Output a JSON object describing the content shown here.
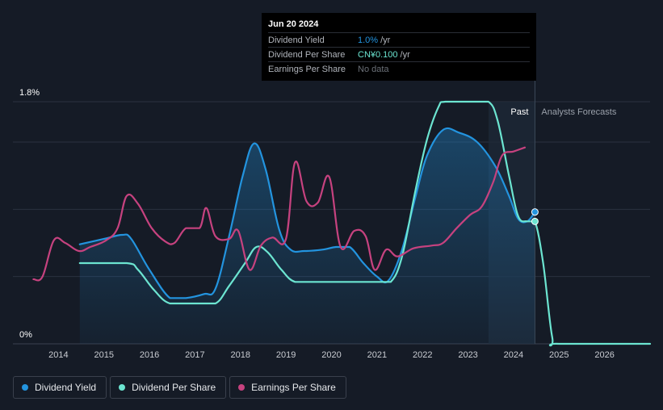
{
  "colors": {
    "background": "#151b26",
    "dividend_yield": "#2394df",
    "dividend_per_share": "#6ce5d1",
    "earnings_per_share": "#c6427f",
    "grid": "#2a3140"
  },
  "tooltip": {
    "date": "Jun 20 2024",
    "rows": [
      {
        "label": "Dividend Yield",
        "value": "1.0%",
        "unit": "/yr",
        "color": "#2394df"
      },
      {
        "label": "Dividend Per Share",
        "value": "CN¥0.100",
        "unit": "/yr",
        "color": "#6ce5d1"
      },
      {
        "label": "Earnings Per Share",
        "value": "No data",
        "unit": ""
      }
    ]
  },
  "regions": {
    "past_label": "Past",
    "forecast_label": "Analysts Forecasts"
  },
  "legend": [
    {
      "label": "Dividend Yield",
      "color": "#2394df"
    },
    {
      "label": "Dividend Per Share",
      "color": "#6ce5d1"
    },
    {
      "label": "Earnings Per Share",
      "color": "#c6427f"
    }
  ],
  "chart_data": {
    "type": "line",
    "title": "",
    "xlabel": "",
    "ylabel": "",
    "y_tick_labels": [
      "1.8%",
      "0%"
    ],
    "x_tick_labels": [
      "2014",
      "2015",
      "2016",
      "2017",
      "2018",
      "2019",
      "2020",
      "2021",
      "2022",
      "2023",
      "2024",
      "2025",
      "2026"
    ],
    "xlim": [
      2013.0,
      2027.0
    ],
    "ylim": [
      0,
      1.8
    ],
    "past_end_x": 2024.47,
    "highlight_start_x": 2023.45,
    "tooltip_x": 2024.47,
    "series": [
      {
        "name": "Dividend Yield",
        "unit": "%",
        "filled": true,
        "points": [
          [
            2014.47,
            0.74
          ],
          [
            2015.0,
            0.78
          ],
          [
            2015.4,
            0.81
          ],
          [
            2015.6,
            0.78
          ],
          [
            2016.0,
            0.55
          ],
          [
            2016.45,
            0.34
          ],
          [
            2016.8,
            0.34
          ],
          [
            2017.2,
            0.37
          ],
          [
            2017.45,
            0.41
          ],
          [
            2017.75,
            0.8
          ],
          [
            2018.05,
            1.25
          ],
          [
            2018.3,
            1.49
          ],
          [
            2018.55,
            1.3
          ],
          [
            2018.85,
            0.85
          ],
          [
            2019.1,
            0.7
          ],
          [
            2019.4,
            0.69
          ],
          [
            2019.8,
            0.7
          ],
          [
            2020.1,
            0.72
          ],
          [
            2020.4,
            0.72
          ],
          [
            2020.7,
            0.6
          ],
          [
            2021.0,
            0.5
          ],
          [
            2021.25,
            0.47
          ],
          [
            2021.55,
            0.7
          ],
          [
            2021.85,
            1.1
          ],
          [
            2022.1,
            1.4
          ],
          [
            2022.45,
            1.59
          ],
          [
            2022.8,
            1.57
          ],
          [
            2023.2,
            1.5
          ],
          [
            2023.6,
            1.32
          ],
          [
            2023.9,
            1.1
          ],
          [
            2024.1,
            0.93
          ],
          [
            2024.3,
            0.91
          ],
          [
            2024.47,
            0.98
          ]
        ]
      },
      {
        "name": "Dividend Per Share",
        "unit": "CN¥",
        "filled": false,
        "points": [
          [
            2014.47,
            0.6
          ],
          [
            2015.5,
            0.6
          ],
          [
            2015.75,
            0.55
          ],
          [
            2016.1,
            0.4
          ],
          [
            2016.45,
            0.3
          ],
          [
            2017.0,
            0.3
          ],
          [
            2017.45,
            0.3
          ],
          [
            2017.75,
            0.43
          ],
          [
            2018.1,
            0.6
          ],
          [
            2018.35,
            0.72
          ],
          [
            2018.6,
            0.68
          ],
          [
            2018.9,
            0.55
          ],
          [
            2019.2,
            0.46
          ],
          [
            2019.7,
            0.46
          ],
          [
            2020.5,
            0.46
          ],
          [
            2021.0,
            0.46
          ],
          [
            2021.3,
            0.46
          ],
          [
            2021.55,
            0.65
          ],
          [
            2021.85,
            1.15
          ],
          [
            2022.1,
            1.52
          ],
          [
            2022.35,
            1.76
          ],
          [
            2022.5,
            1.8
          ],
          [
            2023.1,
            1.8
          ],
          [
            2023.45,
            1.8
          ],
          [
            2023.65,
            1.66
          ],
          [
            2023.9,
            1.25
          ],
          [
            2024.1,
            0.95
          ],
          [
            2024.3,
            0.91
          ],
          [
            2024.47,
            0.91
          ],
          [
            2024.65,
            0.6
          ],
          [
            2024.85,
            0.05
          ],
          [
            2025.0,
            0.0
          ],
          [
            2027.0,
            0.0
          ]
        ]
      },
      {
        "name": "Earnings Per Share",
        "unit": "CN¥",
        "filled": false,
        "points": [
          [
            2013.45,
            0.48
          ],
          [
            2013.65,
            0.5
          ],
          [
            2013.9,
            0.77
          ],
          [
            2014.15,
            0.75
          ],
          [
            2014.45,
            0.69
          ],
          [
            2014.7,
            0.72
          ],
          [
            2015.05,
            0.77
          ],
          [
            2015.3,
            0.86
          ],
          [
            2015.5,
            1.1
          ],
          [
            2015.75,
            1.04
          ],
          [
            2016.05,
            0.86
          ],
          [
            2016.35,
            0.76
          ],
          [
            2016.55,
            0.75
          ],
          [
            2016.8,
            0.86
          ],
          [
            2017.1,
            0.86
          ],
          [
            2017.25,
            1.01
          ],
          [
            2017.45,
            0.8
          ],
          [
            2017.75,
            0.78
          ],
          [
            2017.95,
            0.84
          ],
          [
            2018.2,
            0.55
          ],
          [
            2018.45,
            0.73
          ],
          [
            2018.7,
            0.79
          ],
          [
            2019.0,
            0.78
          ],
          [
            2019.2,
            1.35
          ],
          [
            2019.45,
            1.06
          ],
          [
            2019.7,
            1.05
          ],
          [
            2019.95,
            1.24
          ],
          [
            2020.2,
            0.72
          ],
          [
            2020.5,
            0.84
          ],
          [
            2020.75,
            0.8
          ],
          [
            2020.95,
            0.55
          ],
          [
            2021.2,
            0.7
          ],
          [
            2021.45,
            0.65
          ],
          [
            2021.8,
            0.71
          ],
          [
            2022.2,
            0.73
          ],
          [
            2022.45,
            0.75
          ],
          [
            2022.75,
            0.86
          ],
          [
            2023.05,
            0.96
          ],
          [
            2023.3,
            1.02
          ],
          [
            2023.55,
            1.2
          ],
          [
            2023.75,
            1.4
          ],
          [
            2024.0,
            1.43
          ],
          [
            2024.25,
            1.46
          ]
        ]
      }
    ]
  }
}
